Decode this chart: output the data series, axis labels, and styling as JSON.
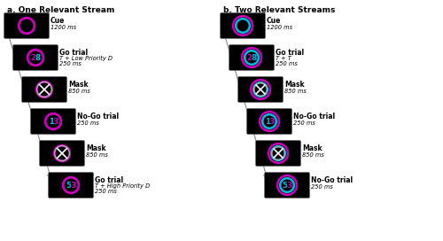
{
  "title_a": "a. One Relevant Stream",
  "title_b": "b. Two Relevant Streams",
  "fig_bg": "#ffffff",
  "magenta": "#CC00BB",
  "cyan": "#00BBDD",
  "panel_a": {
    "frames": [
      {
        "label": "Cue",
        "sublabel": "1200 ms",
        "digit_inner": null,
        "digit_outer": null,
        "mask": false,
        "ring_inner": "magenta",
        "ring_outer": null
      },
      {
        "label": "Go trial",
        "sublabel": "T + Low Priority D",
        "sublabel2": "250 ms",
        "digit_inner": "8",
        "digit_inner_color": "cyan",
        "digit_outer": "2",
        "digit_outer_color": "magenta",
        "mask": false,
        "ring_inner": "magenta",
        "ring_outer": null
      },
      {
        "label": "Mask",
        "sublabel": "850 ms",
        "sublabel2": null,
        "digit_inner": null,
        "digit_outer": null,
        "mask": true,
        "ring_inner": "magenta",
        "ring_outer": null
      },
      {
        "label": "No-Go trial",
        "sublabel": "250 ms",
        "sublabel2": null,
        "digit_inner": "3",
        "digit_inner_color": "magenta",
        "digit_outer": "1",
        "digit_outer_color": "cyan",
        "mask": false,
        "ring_inner": "magenta",
        "ring_outer": null
      },
      {
        "label": "Mask",
        "sublabel": "850 ms",
        "sublabel2": null,
        "digit_inner": null,
        "digit_outer": null,
        "mask": true,
        "ring_inner": "magenta",
        "ring_outer": null
      },
      {
        "label": "Go trial",
        "sublabel": "T + High Priority D",
        "sublabel2": "250 ms",
        "digit_inner": "3",
        "digit_inner_color": "magenta",
        "digit_outer": "5",
        "digit_outer_color": "cyan",
        "mask": false,
        "ring_inner": "magenta",
        "ring_outer": null
      }
    ]
  },
  "panel_b": {
    "frames": [
      {
        "label": "Cue",
        "sublabel": "1200 ms",
        "sublabel2": null,
        "digit_inner": null,
        "digit_outer": null,
        "mask": false,
        "ring_inner": "cyan",
        "ring_outer": "magenta"
      },
      {
        "label": "Go trial",
        "sublabel": "T + T",
        "sublabel2": "250 ms",
        "digit_inner": "8",
        "digit_inner_color": "cyan",
        "digit_outer": "2",
        "digit_outer_color": "magenta",
        "mask": false,
        "ring_inner": "cyan",
        "ring_outer": "magenta"
      },
      {
        "label": "Mask",
        "sublabel": "850 ms",
        "sublabel2": null,
        "digit_inner": null,
        "digit_outer": null,
        "mask": true,
        "ring_inner": "cyan",
        "ring_outer": "magenta"
      },
      {
        "label": "No-Go trial",
        "sublabel": "250 ms",
        "sublabel2": null,
        "digit_inner": "3",
        "digit_inner_color": "magenta",
        "digit_outer": "1",
        "digit_outer_color": "cyan",
        "mask": false,
        "ring_inner": "cyan",
        "ring_outer": "magenta"
      },
      {
        "label": "Mask",
        "sublabel": "850 ms",
        "sublabel2": null,
        "digit_inner": null,
        "digit_outer": null,
        "mask": true,
        "ring_inner": "cyan",
        "ring_outer": "magenta"
      },
      {
        "label": "No-Go trial",
        "sublabel": "250 ms",
        "sublabel2": null,
        "digit_inner": "3",
        "digit_inner_color": "magenta",
        "digit_outer": "5",
        "digit_outer_color": "cyan",
        "mask": false,
        "ring_inner": "cyan",
        "ring_outer": "magenta"
      }
    ]
  }
}
